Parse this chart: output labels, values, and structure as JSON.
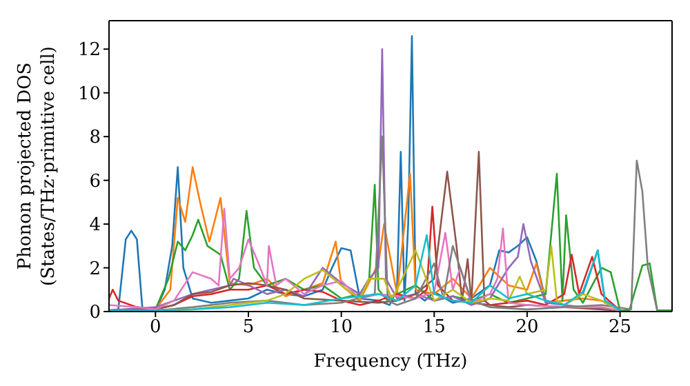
{
  "chart_data": {
    "type": "line",
    "xlabel": "Frequency (THz)",
    "ylabel": "Phonon projected DOS\n(States/THz·primitive cell)",
    "xlim": [
      -2.5,
      27.8
    ],
    "ylim": [
      0,
      13.3
    ],
    "xticks": [
      0,
      5,
      10,
      15,
      20,
      25
    ],
    "yticks": [
      0,
      2,
      4,
      6,
      8,
      10,
      12
    ],
    "marker": "none",
    "line_style": "solid",
    "series": [
      {
        "color": "#1f77b4",
        "x": [
          -2.5,
          -2,
          -1.6,
          -1.3,
          -1,
          -0.7,
          0,
          0.5,
          0.9,
          1.2,
          1.5,
          2,
          3,
          4,
          5,
          6,
          7,
          8,
          9,
          9.5,
          10,
          10.5,
          11,
          12,
          12.6,
          13,
          13.2,
          13.4,
          13.6,
          13.8,
          14,
          14.5,
          15,
          16,
          17,
          18,
          18.5,
          19,
          19.5,
          20,
          20.5,
          21,
          22,
          23,
          23.8,
          24.2,
          25
        ],
        "values": [
          0.05,
          0.1,
          3.3,
          3.7,
          3.3,
          0.1,
          0.05,
          1,
          3,
          6.6,
          2,
          0.6,
          0.4,
          0.5,
          0.6,
          1,
          0.8,
          0.7,
          1,
          2,
          2.9,
          2.8,
          0.6,
          0.5,
          0.3,
          1,
          7.3,
          0.5,
          4,
          12.6,
          0.8,
          0.5,
          0.9,
          0.4,
          0.6,
          1.2,
          2.8,
          2.7,
          3,
          3.4,
          2.3,
          0.5,
          0.3,
          0.8,
          2.8,
          0.4,
          0.05
        ]
      },
      {
        "color": "#ff7f0e",
        "x": [
          -2.5,
          0,
          0.8,
          1.2,
          1.6,
          2,
          2.4,
          2.9,
          3.5,
          4,
          5,
          6,
          7,
          8,
          9,
          9.7,
          10,
          11,
          12,
          12.3,
          13,
          13.7,
          14,
          15,
          16,
          17,
          18,
          19,
          20,
          20.5,
          21,
          22,
          23,
          24,
          25
        ],
        "values": [
          0.05,
          0.1,
          1,
          5.2,
          4.1,
          6.6,
          5,
          3.2,
          5.2,
          1.3,
          1.2,
          1.5,
          0.7,
          1,
          1.3,
          3.2,
          1.2,
          0.5,
          2.2,
          4,
          0.8,
          6.3,
          1,
          0.8,
          1.5,
          0.6,
          2,
          1.2,
          1,
          2.2,
          0.4,
          0.5,
          0.6,
          0.5,
          0.05
        ]
      },
      {
        "color": "#2ca02c",
        "x": [
          -2.5,
          0,
          0.7,
          1.2,
          1.6,
          2,
          2.3,
          2.8,
          3.5,
          4,
          4.5,
          4.9,
          5.3,
          6,
          7,
          8,
          9,
          10,
          11,
          11.5,
          11.8,
          12,
          12.5,
          13,
          14,
          15,
          16,
          17,
          18,
          19,
          20,
          21,
          21.6,
          21.9,
          22.1,
          22.5,
          23,
          24,
          24.5,
          25,
          25.5,
          26.2,
          26.6,
          27,
          27.8
        ],
        "values": [
          0.05,
          0.1,
          1.5,
          3.2,
          2.8,
          3.5,
          4.2,
          3,
          2.6,
          1,
          1.5,
          4.6,
          2,
          1.2,
          1.5,
          1,
          1.2,
          0.6,
          0.8,
          1.5,
          5.8,
          1,
          0.5,
          0.8,
          1.2,
          0.5,
          0.7,
          0.5,
          0.8,
          0.4,
          0.6,
          0.8,
          6.3,
          0.5,
          4.4,
          1,
          0.4,
          2,
          1.8,
          0.05,
          0.05,
          2.1,
          2.2,
          0.05,
          0.05
        ]
      },
      {
        "color": "#d62728",
        "x": [
          -2.5,
          -2.3,
          -2,
          -1,
          0,
          1,
          2,
          3,
          4,
          5,
          6,
          7,
          8,
          9,
          10,
          11,
          12,
          13,
          14,
          14.6,
          14.9,
          15.2,
          16,
          17,
          18,
          19,
          20,
          21,
          22,
          22.4,
          22.8,
          23.5,
          24,
          25
        ],
        "values": [
          0.6,
          1.0,
          0.5,
          0.2,
          0.1,
          0.3,
          0.7,
          0.8,
          1,
          1,
          1.2,
          0.8,
          1,
          0.9,
          0.5,
          0.3,
          0.5,
          0.8,
          0.6,
          1,
          4.8,
          1.2,
          0.5,
          0.4,
          0.3,
          0.4,
          0.5,
          0.3,
          0.8,
          2.6,
          0.8,
          2.5,
          0.8,
          0.05
        ]
      },
      {
        "color": "#9467bd",
        "x": [
          -2.5,
          0,
          1,
          2,
          3,
          4,
          4.2,
          5,
          6,
          7,
          8,
          9,
          10,
          11,
          11.5,
          12,
          12.2,
          12.4,
          13,
          14,
          15,
          16,
          17,
          18,
          19,
          19.5,
          19.8,
          20.2,
          21,
          22,
          23,
          25
        ],
        "values": [
          0.05,
          0.2,
          0.5,
          0.8,
          1,
          1.2,
          1.5,
          1.2,
          0.8,
          1,
          0.7,
          2,
          1.3,
          0.8,
          1.5,
          2,
          12,
          1.5,
          0.6,
          0.8,
          0.5,
          0.7,
          0.3,
          0.6,
          2,
          2.5,
          4,
          2.3,
          0.4,
          0.3,
          0.2,
          0.05
        ]
      },
      {
        "color": "#8c564b",
        "x": [
          -2.5,
          0,
          1,
          2,
          3,
          4,
          5,
          6,
          7,
          8,
          10,
          12,
          13,
          14,
          15,
          15.7,
          16.2,
          16.5,
          16.8,
          17,
          17.4,
          17.7,
          18,
          19,
          20,
          22,
          24,
          25
        ],
        "values": [
          0.05,
          0.1,
          0.3,
          0.8,
          0.9,
          1.2,
          1.3,
          1.2,
          1,
          0.6,
          0.5,
          0.4,
          0.5,
          0.8,
          1.5,
          6.4,
          3,
          0.5,
          2.4,
          0.4,
          7.3,
          0.5,
          0.3,
          0.2,
          0.3,
          0.2,
          0.1,
          0.05
        ]
      },
      {
        "color": "#e377c2",
        "x": [
          -2.5,
          -1,
          0,
          1,
          2,
          3,
          3.4,
          3.7,
          4,
          4.5,
          5,
          5.5,
          6,
          6.1,
          6.5,
          7,
          8,
          9,
          10,
          11,
          12,
          13,
          14,
          15,
          15.6,
          16,
          16.4,
          17,
          18,
          18.4,
          18.7,
          19,
          20,
          22,
          24,
          25
        ],
        "values": [
          0.3,
          0.2,
          0.1,
          0.5,
          1.8,
          1.5,
          1.2,
          4.7,
          1.5,
          2,
          3.3,
          2.3,
          1.2,
          3,
          1.2,
          1.5,
          0.8,
          1.2,
          1.4,
          0.6,
          0.8,
          0.7,
          0.6,
          0.9,
          3.6,
          1,
          2,
          0.4,
          0.8,
          1.5,
          3.8,
          0.4,
          0.3,
          0.2,
          0.2,
          0.05
        ]
      },
      {
        "color": "#7f7f7f",
        "x": [
          -2.5,
          0,
          2,
          4,
          6,
          8,
          10,
          11.8,
          12.2,
          12.5,
          13,
          14,
          15,
          15.5,
          16,
          17,
          18,
          20,
          22,
          24,
          25.6,
          25.9,
          26.2,
          26.5,
          27
        ],
        "values": [
          0.05,
          0.05,
          0.2,
          0.4,
          0.5,
          0.3,
          0.4,
          0.8,
          8,
          0.5,
          0.3,
          0.6,
          2.2,
          0.6,
          3,
          0.5,
          0.2,
          0.1,
          0.2,
          0.3,
          0.1,
          6.9,
          5.5,
          2,
          0.05
        ]
      },
      {
        "color": "#bcbd22",
        "x": [
          -2.5,
          0,
          2,
          4,
          6,
          7,
          8,
          9,
          10,
          11,
          11.5,
          12.3,
          12.7,
          13,
          14,
          15,
          16,
          17,
          18,
          19,
          19.6,
          20,
          21,
          21.3,
          21.6,
          22,
          23,
          24,
          25
        ],
        "values": [
          0.05,
          0.05,
          0.1,
          0.3,
          0.5,
          0.8,
          1.5,
          1.9,
          1.2,
          0.6,
          1.5,
          1.5,
          0.6,
          1,
          2.8,
          0.5,
          1,
          0.4,
          0.6,
          0.5,
          1.6,
          0.8,
          1,
          3,
          0.5,
          0.3,
          0.8,
          0.5,
          0.05
        ]
      },
      {
        "color": "#17becf",
        "x": [
          -2.5,
          0,
          2,
          4,
          6,
          8,
          10,
          12,
          13,
          14,
          14.6,
          15,
          16,
          17,
          18,
          19,
          20,
          21,
          22,
          23,
          23.8,
          24.2,
          25
        ],
        "values": [
          0.05,
          0.05,
          0.1,
          0.2,
          0.4,
          0.3,
          0.6,
          0.8,
          0.5,
          1.2,
          3.5,
          0.8,
          0.5,
          0.4,
          1.2,
          0.6,
          0.8,
          0.5,
          0.3,
          0.9,
          2.8,
          0.5,
          0.05
        ]
      }
    ]
  }
}
